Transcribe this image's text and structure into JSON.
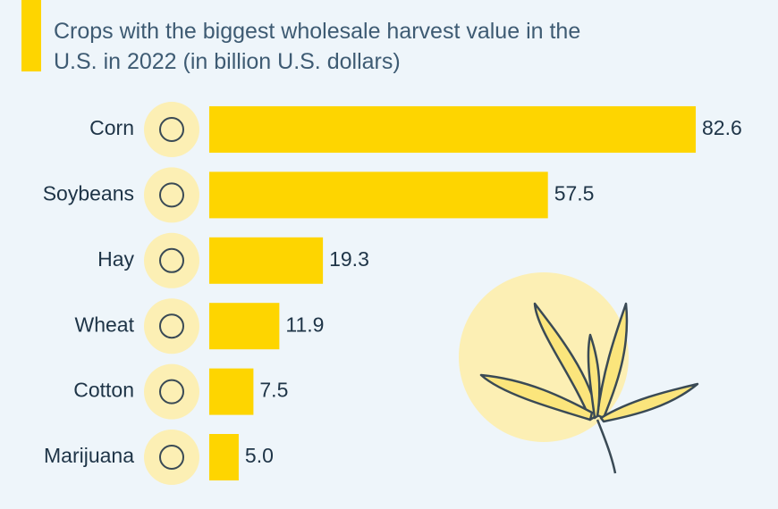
{
  "chart_data": {
    "type": "bar",
    "orientation": "horizontal",
    "subtitle": "Crops with the biggest wholesale harvest value in the U.S. in 2022 (in billion U.S. dollars)",
    "categories": [
      "Corn",
      "Soybeans",
      "Hay",
      "Wheat",
      "Cotton",
      "Marijuana"
    ],
    "values": [
      82.6,
      57.5,
      19.3,
      11.9,
      7.5,
      5.0
    ],
    "value_labels": [
      "82.6",
      "57.5",
      "19.3",
      "11.9",
      "7.5",
      "5.0"
    ],
    "color": "#fed500"
  }
}
